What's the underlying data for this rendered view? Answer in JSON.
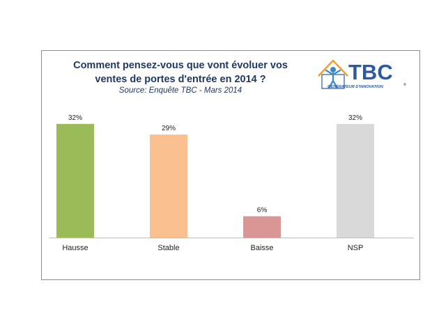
{
  "chart_data": {
    "type": "bar",
    "title_line1": "Comment pensez-vous que vont évoluer vos",
    "title_line2": "ventes de portes d'entrée en 2014 ?",
    "subtitle": "Source: Enquête TBC - Mars 2014",
    "categories": [
      "Hausse",
      "Stable",
      "Baisse",
      "NSP"
    ],
    "values": [
      32,
      29,
      6,
      32
    ],
    "value_labels": [
      "32%",
      "29%",
      "6%",
      "32%"
    ],
    "colors": [
      "#9bbb59",
      "#fac090",
      "#d99694",
      "#d9d9d9"
    ],
    "ylim": [
      0,
      36
    ],
    "grid": false,
    "legend": "none"
  },
  "logo": {
    "name": "TBC",
    "tagline": "GÉNÉRATEUR D'INNOVATION",
    "registered": "®",
    "color": "#2c5aa0"
  }
}
